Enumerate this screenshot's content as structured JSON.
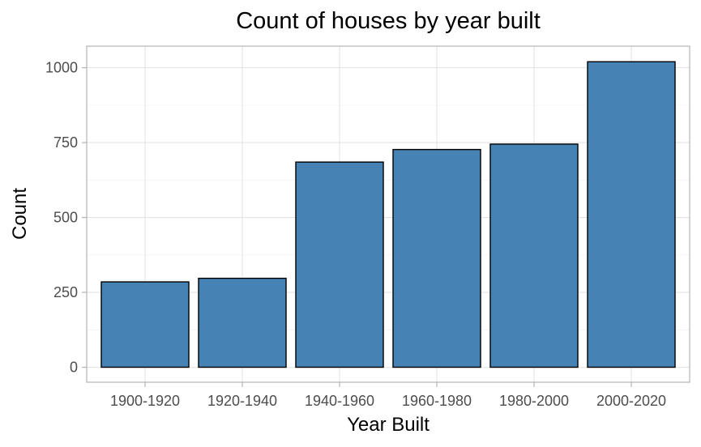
{
  "chart_data": {
    "type": "bar",
    "title": "Count of houses by year built",
    "xlabel": "Year Built",
    "ylabel": "Count",
    "categories": [
      "1900-1920",
      "1920-1940",
      "1940-1960",
      "1960-1980",
      "1980-2000",
      "2000-2020"
    ],
    "values": [
      285,
      297,
      685,
      727,
      745,
      1020
    ],
    "ylim": [
      -50,
      1072
    ],
    "yticks": [
      0,
      250,
      500,
      750,
      1000
    ],
    "grid": true,
    "legend": "none",
    "colors": {
      "bar_fill": "#4682b4",
      "bar_outline": "#000000"
    }
  }
}
